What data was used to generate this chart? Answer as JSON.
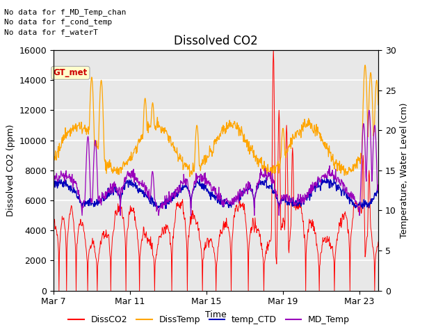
{
  "title": "Dissolved CO2",
  "xlabel": "Time",
  "ylabel_left": "Dissolved CO2 (ppm)",
  "ylabel_right": "Temperature, Water Level (cm)",
  "ylim_left": [
    0,
    16000
  ],
  "ylim_right": [
    0,
    30
  ],
  "yticks_left": [
    0,
    2000,
    4000,
    6000,
    8000,
    10000,
    12000,
    14000,
    16000
  ],
  "yticks_right": [
    0,
    5,
    10,
    15,
    20,
    25,
    30
  ],
  "xtick_labels": [
    "Mar 7",
    "Mar 11",
    "Mar 15",
    "Mar 19",
    "Mar 23"
  ],
  "xtick_positions": [
    0,
    4,
    8,
    12,
    16
  ],
  "xlim": [
    0,
    17
  ],
  "annotations_top_left": [
    "No data for f_MD_Temp_chan",
    "No data for f_cond_temp",
    "No data for f_waterT"
  ],
  "gt_met_label": "GT_met",
  "gt_met_color": "#cc0000",
  "gt_met_bg": "#ffffcc",
  "legend_labels": [
    "DissCO2",
    "DissTemp",
    "temp_CTD",
    "MD_Temp"
  ],
  "legend_colors": [
    "#ff0000",
    "#ffa500",
    "#0000bb",
    "#9900bb"
  ],
  "series_colors": {
    "DissCO2": "#ff0000",
    "DissTemp": "#ffa500",
    "temp_CTD": "#0000bb",
    "MD_Temp": "#9900bb"
  },
  "background_plot": "#e8e8e8",
  "background_fig": "#ffffff",
  "grid_color": "#ffffff",
  "title_fontsize": 12,
  "axis_fontsize": 9,
  "annot_fontsize": 8
}
